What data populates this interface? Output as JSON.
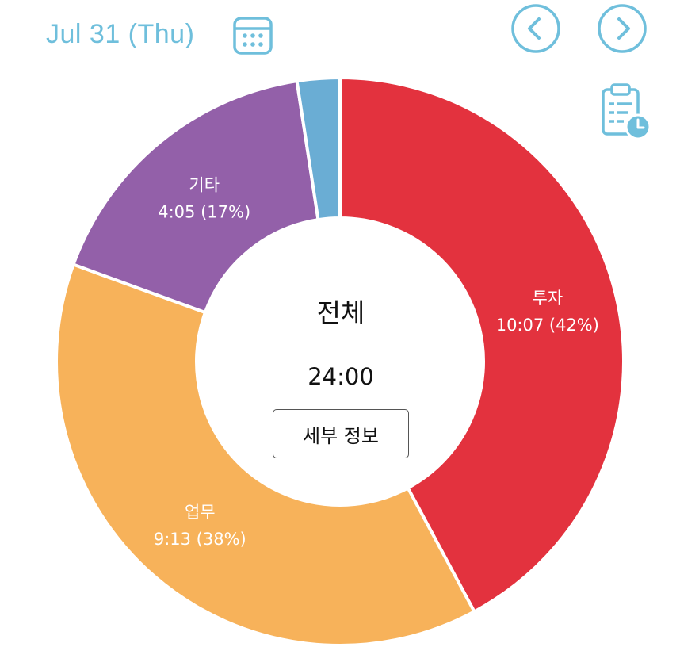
{
  "header": {
    "date": "Jul 31 (Thu)",
    "calendar_icon": "calendar-icon",
    "prev_icon": "chevron-left-circle-icon",
    "next_icon": "chevron-right-circle-icon",
    "history_icon": "clipboard-clock-icon",
    "accent_color": "#6fbfdc"
  },
  "center": {
    "title": "전체",
    "total": "24:00",
    "detail_button": "세부 정보"
  },
  "chart_data": {
    "type": "pie",
    "donut": true,
    "total_minutes": 1440,
    "slices": [
      {
        "name": "투자",
        "time": "10:07",
        "percent_label": "42%",
        "minutes": 607,
        "color": "#e3323e",
        "show_label": true
      },
      {
        "name": "업무",
        "time": "9:13",
        "percent_label": "38%",
        "minutes": 553,
        "color": "#f7b25a",
        "show_label": true
      },
      {
        "name": "기타",
        "time": "4:05",
        "percent_label": "17%",
        "minutes": 245,
        "color": "#9360a9",
        "show_label": true
      },
      {
        "name": "",
        "time": "",
        "percent_label": "",
        "minutes": 35,
        "color": "#6aadd4",
        "show_label": false
      }
    ]
  }
}
